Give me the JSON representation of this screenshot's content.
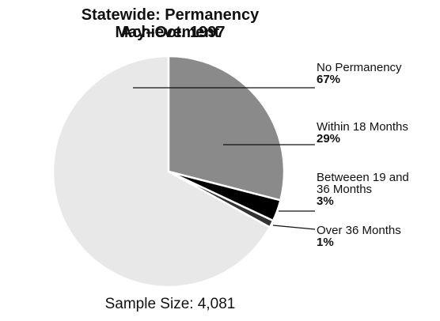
{
  "chart_data": {
    "type": "pie",
    "title": "Statewide: Permanency Achievement",
    "subtitle": "May–Oct. 1997",
    "categories": [
      "No Permanency",
      "Within 18 Months",
      "Betweeen 19 and 36 Months",
      "Over 36 Months"
    ],
    "values": [
      67,
      29,
      3,
      1
    ],
    "value_labels": [
      "67%",
      "29%",
      "3%",
      "1%"
    ],
    "colors": [
      "#e8e8e8",
      "#8a8a8a",
      "#000000",
      "#333333"
    ],
    "annotation": "Sample Size: 4,081"
  }
}
